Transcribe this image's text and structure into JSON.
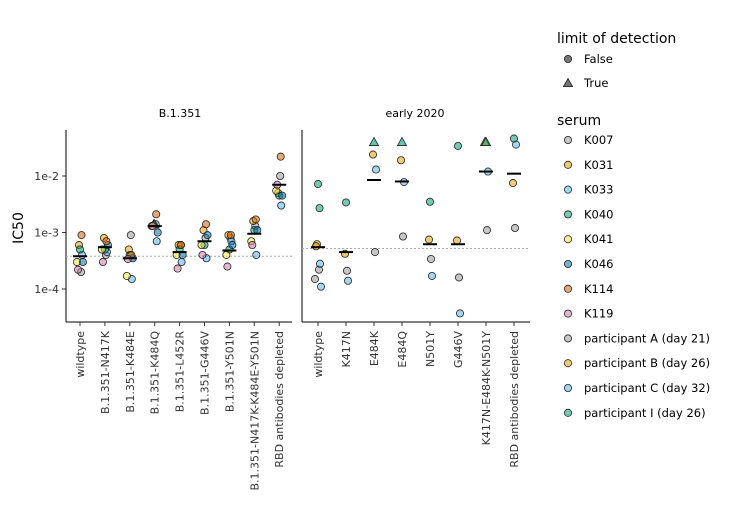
{
  "chart_data": {
    "type": "scatter",
    "ylabel": "IC50",
    "yscale": "log",
    "ylim": [
      2.5e-05,
      0.09
    ],
    "yticks": [
      {
        "value": 0.0001,
        "label": "1e-4"
      },
      {
        "value": 0.001,
        "label": "1e-3"
      },
      {
        "value": 0.01,
        "label": "1e-2"
      }
    ],
    "limit_line": 0.00038,
    "panels": [
      {
        "title": "B.1.351",
        "limit_line": 0.00038,
        "categories": [
          "wildtype",
          "B.1.351-N417K",
          "B.1.351-K484E",
          "B.1.351-K484Q",
          "B.1.351-L452R",
          "B.1.351-G446V",
          "B.1.351-Y501N",
          "B.1.351-N417K-K484E-Y501N",
          "RBD antibodies depleted"
        ],
        "medians": [
          0.00038,
          0.00055,
          0.00035,
          0.0013,
          0.00045,
          0.0007,
          0.00048,
          0.00095,
          0.007
        ],
        "points": [
          [
            "wildtype",
            "K007",
            0.0002,
            false
          ],
          [
            "wildtype",
            "K031",
            0.0006,
            false
          ],
          [
            "wildtype",
            "K033",
            0.0004,
            false
          ],
          [
            "wildtype",
            "K040",
            0.0005,
            false
          ],
          [
            "wildtype",
            "K041",
            0.0003,
            false
          ],
          [
            "wildtype",
            "K046",
            0.0003,
            false
          ],
          [
            "wildtype",
            "K114",
            0.0009,
            false
          ],
          [
            "wildtype",
            "K119",
            0.00022,
            false
          ],
          [
            "B.1.351-N417K",
            "K007",
            0.0004,
            false
          ],
          [
            "B.1.351-N417K",
            "K031",
            0.0008,
            false
          ],
          [
            "B.1.351-N417K",
            "K033",
            0.00045,
            false
          ],
          [
            "B.1.351-N417K",
            "K040",
            0.0005,
            false
          ],
          [
            "B.1.351-N417K",
            "K041",
            0.0005,
            false
          ],
          [
            "B.1.351-N417K",
            "K046",
            0.0006,
            false
          ],
          [
            "B.1.351-N417K",
            "K114",
            0.0007,
            false
          ],
          [
            "B.1.351-N417K",
            "K119",
            0.0003,
            false
          ],
          [
            "B.1.351-K484E",
            "K007",
            0.0009,
            false
          ],
          [
            "B.1.351-K484E",
            "K031",
            0.0005,
            false
          ],
          [
            "B.1.351-K484E",
            "K033",
            0.00015,
            false
          ],
          [
            "B.1.351-K484E",
            "K040",
            0.0004,
            false
          ],
          [
            "B.1.351-K484E",
            "K041",
            0.00017,
            false
          ],
          [
            "B.1.351-K484E",
            "K046",
            0.00035,
            false
          ],
          [
            "B.1.351-K484E",
            "K114",
            0.0004,
            false
          ],
          [
            "B.1.351-K484E",
            "K119",
            0.00034,
            false
          ],
          [
            "B.1.351-K484Q",
            "K007",
            0.0014,
            false
          ],
          [
            "B.1.351-K484Q",
            "K031",
            0.0014,
            true
          ],
          [
            "B.1.351-K484Q",
            "K033",
            0.0007,
            false
          ],
          [
            "B.1.351-K484Q",
            "K040",
            0.0014,
            true
          ],
          [
            "B.1.351-K484Q",
            "K041",
            0.0013,
            false
          ],
          [
            "B.1.351-K484Q",
            "K046",
            0.001,
            false
          ],
          [
            "B.1.351-K484Q",
            "K114",
            0.0021,
            false
          ],
          [
            "B.1.351-K484Q",
            "K119",
            0.0013,
            false
          ],
          [
            "B.1.351-L452R",
            "K007",
            0.0006,
            false
          ],
          [
            "B.1.351-L452R",
            "K031",
            0.0006,
            false
          ],
          [
            "B.1.351-L452R",
            "K033",
            0.0003,
            false
          ],
          [
            "B.1.351-L452R",
            "K040",
            0.0005,
            false
          ],
          [
            "B.1.351-L452R",
            "K041",
            0.0004,
            false
          ],
          [
            "B.1.351-L452R",
            "K046",
            0.0004,
            false
          ],
          [
            "B.1.351-L452R",
            "K114",
            0.0006,
            false
          ],
          [
            "B.1.351-L452R",
            "K119",
            0.00023,
            false
          ],
          [
            "B.1.351-G446V",
            "K007",
            0.0008,
            false
          ],
          [
            "B.1.351-G446V",
            "K031",
            0.0011,
            false
          ],
          [
            "B.1.351-G446V",
            "K033",
            0.00035,
            false
          ],
          [
            "B.1.351-G446V",
            "K040",
            0.0006,
            false
          ],
          [
            "B.1.351-G446V",
            "K041",
            0.0006,
            false
          ],
          [
            "B.1.351-G446V",
            "K046",
            0.0009,
            false
          ],
          [
            "B.1.351-G446V",
            "K114",
            0.0014,
            false
          ],
          [
            "B.1.351-G446V",
            "K119",
            0.0004,
            false
          ],
          [
            "B.1.351-Y501N",
            "K007",
            0.0008,
            false
          ],
          [
            "B.1.351-Y501N",
            "K031",
            0.0009,
            false
          ],
          [
            "B.1.351-Y501N",
            "K033",
            0.0007,
            false
          ],
          [
            "B.1.351-Y501N",
            "K040",
            0.0005,
            false
          ],
          [
            "B.1.351-Y501N",
            "K041",
            0.0004,
            false
          ],
          [
            "B.1.351-Y501N",
            "K046",
            0.0006,
            false
          ],
          [
            "B.1.351-Y501N",
            "K114",
            0.0009,
            false
          ],
          [
            "B.1.351-Y501N",
            "K119",
            0.00025,
            false
          ],
          [
            "B.1.351-N417K-K484E-Y501N",
            "K007",
            0.0013,
            false
          ],
          [
            "B.1.351-N417K-K484E-Y501N",
            "K031",
            0.0016,
            false
          ],
          [
            "B.1.351-N417K-K484E-Y501N",
            "K033",
            0.0004,
            false
          ],
          [
            "B.1.351-N417K-K484E-Y501N",
            "K040",
            0.0011,
            false
          ],
          [
            "B.1.351-N417K-K484E-Y501N",
            "K041",
            0.0007,
            false
          ],
          [
            "B.1.351-N417K-K484E-Y501N",
            "K046",
            0.0011,
            false
          ],
          [
            "B.1.351-N417K-K484E-Y501N",
            "K114",
            0.0017,
            false
          ],
          [
            "B.1.351-N417K-K484E-Y501N",
            "K119",
            0.0006,
            false
          ],
          [
            "RBD antibodies depleted",
            "K007",
            0.01,
            false
          ],
          [
            "RBD antibodies depleted",
            "K031",
            0.005,
            false
          ],
          [
            "RBD antibodies depleted",
            "K033",
            0.003,
            false
          ],
          [
            "RBD antibodies depleted",
            "K040",
            0.0045,
            false
          ],
          [
            "RBD antibodies depleted",
            "K041",
            0.0055,
            false
          ],
          [
            "RBD antibodies depleted",
            "K046",
            0.0045,
            false
          ],
          [
            "RBD antibodies depleted",
            "K114",
            0.022,
            false
          ],
          [
            "RBD antibodies depleted",
            "K119",
            0.007,
            false
          ]
        ]
      },
      {
        "title": "early 2020",
        "limit_line": 0.00052,
        "categories": [
          "wildtype",
          "K417N",
          "E484K",
          "E484Q",
          "N501Y",
          "G446V",
          "K417N-E484K-N501Y",
          "RBD antibodies depleted"
        ],
        "medians": [
          0.00055,
          0.00045,
          0.0085,
          0.008,
          0.00062,
          0.00062,
          0.012,
          0.011
        ],
        "points": [
          [
            "wildtype",
            "participant A (day 21)",
            0.00022,
            false
          ],
          [
            "wildtype",
            "participant B (day 26)",
            0.00062,
            false
          ],
          [
            "wildtype",
            "participant C (day 32)",
            0.00028,
            false
          ],
          [
            "wildtype",
            "participant I (day 26)",
            0.0072,
            false
          ],
          [
            "wildtype",
            "participant A (day 21)",
            0.00015,
            false
          ],
          [
            "wildtype",
            "participant C (day 32)",
            0.00011,
            false
          ],
          [
            "wildtype",
            "participant I (day 26)",
            0.0027,
            false
          ],
          [
            "wildtype",
            "participant B (day 26)",
            0.00057,
            false
          ],
          [
            "K417N",
            "participant A (day 21)",
            0.00021,
            false
          ],
          [
            "K417N",
            "participant B (day 26)",
            0.00042,
            false
          ],
          [
            "K417N",
            "participant C (day 32)",
            0.00014,
            false
          ],
          [
            "K417N",
            "participant I (day 26)",
            0.0034,
            false
          ],
          [
            "E484K",
            "participant A (day 21)",
            0.00045,
            false
          ],
          [
            "E484K",
            "participant B (day 26)",
            0.024,
            false
          ],
          [
            "E484K",
            "participant C (day 32)",
            0.013,
            false
          ],
          [
            "E484K",
            "participant I (day 26)",
            0.04,
            true
          ],
          [
            "E484Q",
            "participant A (day 21)",
            0.00085,
            false
          ],
          [
            "E484Q",
            "participant B (day 26)",
            0.019,
            false
          ],
          [
            "E484Q",
            "participant C (day 32)",
            0.0078,
            false
          ],
          [
            "E484Q",
            "participant I (day 26)",
            0.04,
            true
          ],
          [
            "N501Y",
            "participant A (day 21)",
            0.00034,
            false
          ],
          [
            "N501Y",
            "participant B (day 26)",
            0.00075,
            false
          ],
          [
            "N501Y",
            "participant C (day 32)",
            0.00017,
            false
          ],
          [
            "N501Y",
            "participant I (day 26)",
            0.0035,
            false
          ],
          [
            "G446V",
            "participant A (day 21)",
            0.00016,
            false
          ],
          [
            "G446V",
            "participant B (day 26)",
            0.00072,
            false
          ],
          [
            "G446V",
            "participant C (day 32)",
            3.7e-05,
            false
          ],
          [
            "G446V",
            "participant I (day 26)",
            0.034,
            false
          ],
          [
            "K417N-E484K-N501Y",
            "participant A (day 21)",
            0.0011,
            false
          ],
          [
            "K417N-E484K-N501Y",
            "participant B (day 26)",
            0.04,
            true
          ],
          [
            "K417N-E484K-N501Y",
            "participant C (day 32)",
            0.012,
            false
          ],
          [
            "K417N-E484K-N501Y",
            "participant I (day 26)",
            0.04,
            true
          ],
          [
            "RBD antibodies depleted",
            "participant A (day 21)",
            0.0012,
            false
          ],
          [
            "RBD antibodies depleted",
            "participant B (day 26)",
            0.0075,
            false
          ],
          [
            "RBD antibodies depleted",
            "participant C (day 32)",
            0.036,
            false
          ],
          [
            "RBD antibodies depleted",
            "participant I (day 26)",
            0.046,
            false
          ]
        ]
      }
    ]
  },
  "legend": {
    "lod_title": "limit of detection",
    "lod_items": [
      {
        "label": "False",
        "marker": "circle"
      },
      {
        "label": "True",
        "marker": "triangle"
      }
    ],
    "serum_title": "serum",
    "serum_items": [
      {
        "label": "K007",
        "color": "#999999"
      },
      {
        "label": "K031",
        "color": "#E69F00"
      },
      {
        "label": "K033",
        "color": "#56B4E9"
      },
      {
        "label": "K040",
        "color": "#009E73"
      },
      {
        "label": "K041",
        "color": "#F0E442"
      },
      {
        "label": "K046",
        "color": "#0072B2"
      },
      {
        "label": "K114",
        "color": "#D55E00"
      },
      {
        "label": "K119",
        "color": "#CC79A7"
      },
      {
        "label": "participant A (day 21)",
        "color": "#999999"
      },
      {
        "label": "participant B (day 26)",
        "color": "#E69F00"
      },
      {
        "label": "participant C (day 32)",
        "color": "#56B4E9"
      },
      {
        "label": "participant I (day 26)",
        "color": "#009E73"
      }
    ]
  }
}
